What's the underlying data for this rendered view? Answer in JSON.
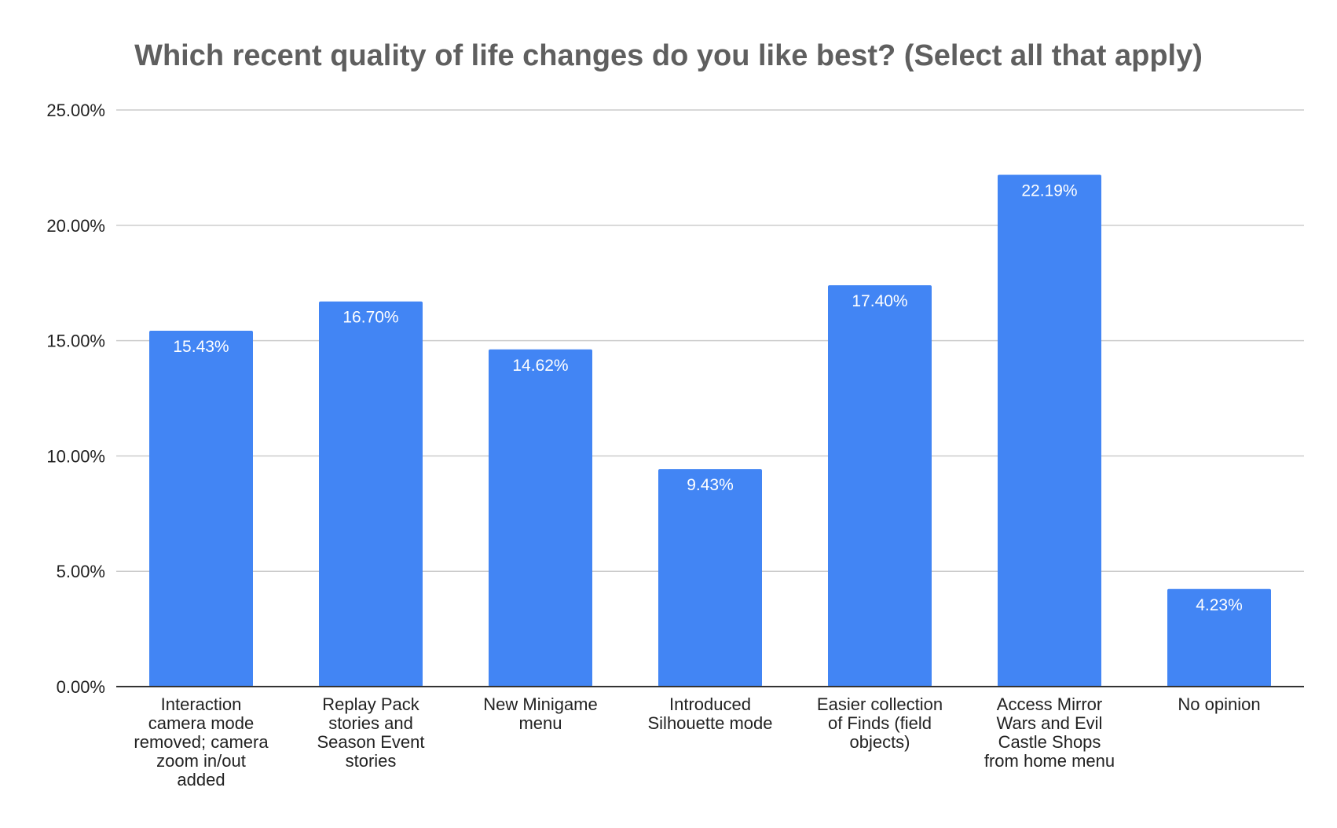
{
  "chart_data": {
    "type": "bar",
    "title": "Which recent quality of life changes do you like best? (Select all that apply)",
    "xlabel": "",
    "ylabel": "",
    "categories": [
      "Interaction camera mode removed; camera zoom in/out added",
      "Replay Pack stories and Season Event stories",
      "New Minigame menu",
      "Introduced Silhouette mode",
      "Easier collection of Finds (field objects)",
      "Access Mirror Wars and Evil Castle Shops from home menu",
      "No opinion"
    ],
    "category_lines": [
      [
        "Interaction",
        "camera mode",
        "removed; camera",
        "zoom in/out",
        "added"
      ],
      [
        "Replay Pack",
        "stories and",
        "Season Event",
        "stories"
      ],
      [
        "New Minigame",
        "menu"
      ],
      [
        "Introduced",
        "Silhouette mode"
      ],
      [
        "Easier collection",
        "of Finds (field",
        "objects)"
      ],
      [
        "Access Mirror",
        "Wars and Evil",
        "Castle Shops",
        "from home menu"
      ],
      [
        "No opinion"
      ]
    ],
    "values": [
      15.43,
      16.7,
      14.62,
      9.43,
      17.4,
      22.19,
      4.23
    ],
    "data_labels": [
      "15.43%",
      "16.70%",
      "14.62%",
      "9.43%",
      "17.40%",
      "22.19%",
      "4.23%"
    ],
    "ylim": [
      0,
      25
    ],
    "y_ticks": [
      0,
      5,
      10,
      15,
      20,
      25
    ],
    "y_tick_labels": [
      "0.00%",
      "5.00%",
      "10.00%",
      "15.00%",
      "20.00%",
      "25.00%"
    ],
    "grid": true,
    "legend": "none",
    "bar_color": "#4285f4"
  }
}
